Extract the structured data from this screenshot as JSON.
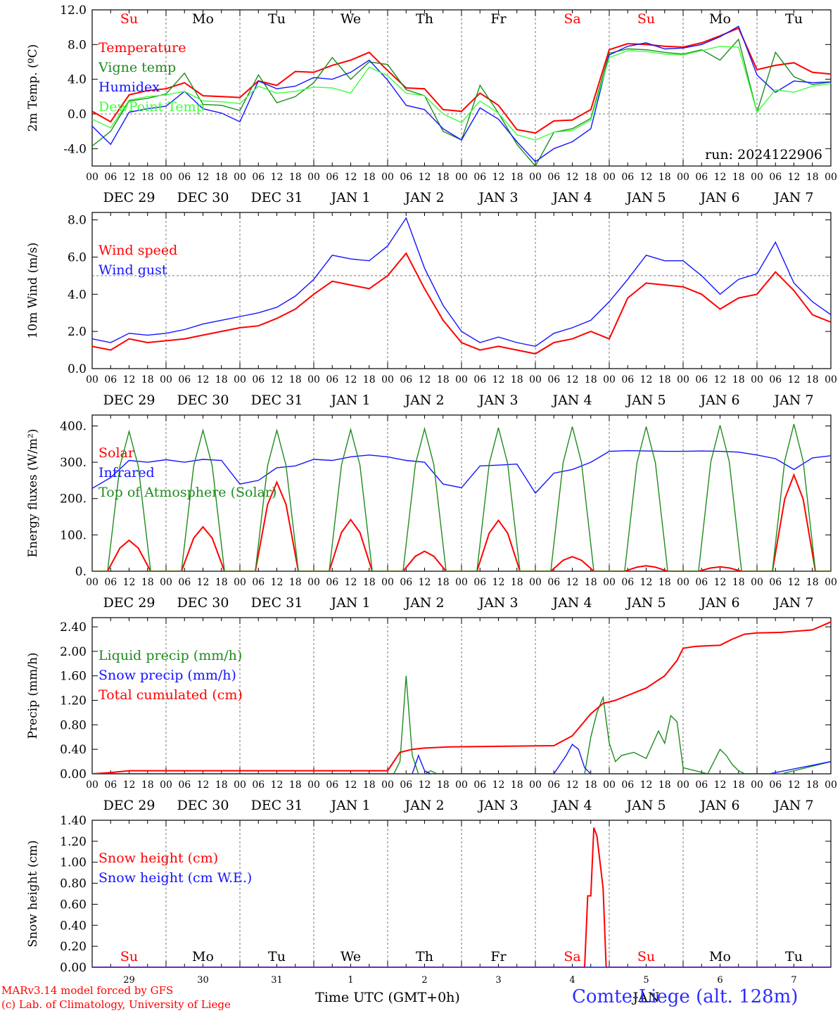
{
  "credits": {
    "line1": "MARv3.14 model forced by GFS",
    "line2": "(c) Lab. of Climatology, University of Liege"
  },
  "station_label": "Comte-Liege (alt. 128m)",
  "colors": {
    "red": "#ff0000",
    "green": "#1e8c1e",
    "blue": "#1414ff",
    "lightgreen": "#3cff3c",
    "grid": "#777777"
  },
  "chart_data": [
    {
      "type": "line",
      "ylabel": "2m Temp. (ºC)",
      "ylim": [
        -6.0,
        12.0
      ],
      "yticks": [
        "-4.0",
        "0.0",
        "4.0",
        "8.0",
        "12.0"
      ],
      "ref_line": 0,
      "run_label": "run: 2024122906",
      "weekday_row": "top",
      "weekdays": [
        {
          "label": "Su",
          "color": "#ff0000"
        },
        {
          "label": "Mo",
          "color": "#000000"
        },
        {
          "label": "Tu",
          "color": "#000000"
        },
        {
          "label": "We",
          "color": "#000000"
        },
        {
          "label": "Th",
          "color": "#000000"
        },
        {
          "label": "Fr",
          "color": "#000000"
        },
        {
          "label": "Sa",
          "color": "#ff0000"
        },
        {
          "label": "Su",
          "color": "#ff0000"
        },
        {
          "label": "Mo",
          "color": "#000000"
        },
        {
          "label": "Tu",
          "color": "#000000"
        }
      ],
      "x_ticks": [
        "00",
        "06",
        "12",
        "18"
      ],
      "dates": [
        "DEC 29",
        "DEC 30",
        "DEC 31",
        "JAN  1",
        "JAN  2",
        "JAN  3",
        "JAN  4",
        "JAN  5",
        "JAN  6",
        "JAN  7"
      ],
      "x": [
        0,
        6,
        12,
        18,
        24,
        30,
        36,
        42,
        48,
        54,
        60,
        66,
        72,
        78,
        84,
        90,
        96,
        102,
        108,
        114,
        120,
        126,
        132,
        138,
        144,
        150,
        156,
        162,
        168,
        174,
        180,
        186,
        192,
        198,
        204,
        210,
        216,
        222,
        228,
        234,
        240
      ],
      "series": [
        {
          "name": "Temperature",
          "color": "#ff0000",
          "values": [
            0.3,
            -0.9,
            2.2,
            2.7,
            2.9,
            3.6,
            2.1,
            2.0,
            1.9,
            3.8,
            3.3,
            4.9,
            4.8,
            5.6,
            6.2,
            7.1,
            5.0,
            3.0,
            2.9,
            0.5,
            0.3,
            2.4,
            1.0,
            -1.8,
            -2.2,
            -0.8,
            -0.7,
            0.5,
            7.4,
            8.1,
            8.0,
            7.8,
            7.7,
            8.2,
            9.0,
            9.9,
            5.1,
            5.6,
            5.9,
            4.8,
            4.6
          ]
        },
        {
          "name": "Vigne temp",
          "color": "#1e8c1e",
          "values": [
            -3.7,
            -2.0,
            1.5,
            1.8,
            2.3,
            4.7,
            1.1,
            1.0,
            0.4,
            4.5,
            1.3,
            2.0,
            3.6,
            6.5,
            4.0,
            6.0,
            5.7,
            2.8,
            2.1,
            -2.0,
            -3.0,
            3.3,
            0.1,
            -3.5,
            -6.0,
            -2.1,
            -1.7,
            -0.5,
            7.0,
            7.5,
            7.4,
            7.1,
            6.9,
            7.4,
            6.2,
            8.6,
            0.2,
            7.1,
            4.3,
            3.4,
            3.7
          ]
        },
        {
          "name": "Humidex",
          "color": "#1414ff",
          "values": [
            -1.4,
            -3.5,
            0.2,
            0.6,
            0.9,
            2.6,
            0.6,
            0.1,
            -0.9,
            3.8,
            2.9,
            3.2,
            4.2,
            4.0,
            4.8,
            6.2,
            3.9,
            1.0,
            0.5,
            -1.7,
            -3.0,
            0.7,
            -0.6,
            -3.2,
            -5.5,
            -4.0,
            -3.2,
            -1.7,
            6.8,
            7.8,
            8.2,
            7.5,
            7.6,
            8.0,
            8.9,
            10.1,
            4.5,
            2.5,
            3.8,
            3.6,
            3.7
          ]
        },
        {
          "name": "DewPoint Temp",
          "color": "#3cff3c",
          "values": [
            -0.6,
            -1.6,
            1.6,
            2.0,
            2.2,
            2.6,
            1.5,
            1.4,
            1.2,
            3.2,
            2.4,
            2.6,
            3.1,
            3.0,
            2.4,
            5.4,
            4.4,
            2.4,
            2.1,
            0.0,
            -1.0,
            1.5,
            0.1,
            -2.4,
            -3.0,
            -2.1,
            -1.9,
            -0.7,
            6.5,
            7.3,
            7.2,
            6.9,
            6.8,
            7.3,
            7.8,
            7.7,
            0.2,
            2.8,
            2.5,
            3.2,
            3.5
          ]
        }
      ]
    },
    {
      "type": "line",
      "ylabel": "10m Wind (m/s)",
      "ylim": [
        0.0,
        8.4
      ],
      "yticks": [
        "0.0",
        "2.0",
        "4.0",
        "6.0",
        "8.0"
      ],
      "ref_line": 5,
      "x_ticks": [
        "00",
        "06",
        "12",
        "18"
      ],
      "dates": [
        "DEC 29",
        "DEC 30",
        "DEC 31",
        "JAN  1",
        "JAN  2",
        "JAN  3",
        "JAN  4",
        "JAN  5",
        "JAN  6",
        "JAN  7"
      ],
      "x": [
        0,
        6,
        12,
        18,
        24,
        30,
        36,
        42,
        48,
        54,
        60,
        66,
        72,
        78,
        84,
        90,
        96,
        102,
        108,
        114,
        120,
        126,
        132,
        138,
        144,
        150,
        156,
        162,
        168,
        174,
        180,
        186,
        192,
        198,
        204,
        210,
        216,
        222,
        228,
        234,
        240
      ],
      "series": [
        {
          "name": "Wind speed",
          "color": "#ff0000",
          "values": [
            1.2,
            1.0,
            1.6,
            1.4,
            1.5,
            1.6,
            1.8,
            2.0,
            2.2,
            2.3,
            2.7,
            3.2,
            4.0,
            4.7,
            4.5,
            4.3,
            5.0,
            6.2,
            4.3,
            2.6,
            1.4,
            1.0,
            1.2,
            1.0,
            0.8,
            1.4,
            1.6,
            2.0,
            1.6,
            3.8,
            4.6,
            4.5,
            4.4,
            4.0,
            3.2,
            3.8,
            4.0,
            5.2,
            4.2,
            2.9,
            2.5
          ]
        },
        {
          "name": "Wind gust",
          "color": "#1414ff",
          "values": [
            1.6,
            1.4,
            1.9,
            1.8,
            1.9,
            2.1,
            2.4,
            2.6,
            2.8,
            3.0,
            3.3,
            3.9,
            4.8,
            6.1,
            5.9,
            5.8,
            6.6,
            8.1,
            5.4,
            3.4,
            2.0,
            1.4,
            1.7,
            1.4,
            1.2,
            1.9,
            2.2,
            2.6,
            3.6,
            4.8,
            6.1,
            5.8,
            5.8,
            5.0,
            4.0,
            4.8,
            5.1,
            6.8,
            4.6,
            3.6,
            2.9
          ]
        }
      ]
    },
    {
      "type": "line",
      "ylabel": "Energy fluxes (W/m²)",
      "ylim": [
        0,
        430
      ],
      "yticks": [
        "0.",
        "100.",
        "200.",
        "300.",
        "400."
      ],
      "x_ticks": [
        "00",
        "06",
        "12",
        "18"
      ],
      "dates": [
        "DEC 29",
        "DEC 30",
        "DEC 31",
        "JAN  1",
        "JAN  2",
        "JAN  3",
        "JAN  4",
        "JAN  5",
        "JAN  6",
        "JAN  7"
      ],
      "series": [
        {
          "name": "Solar",
          "color": "#ff0000",
          "day_peaks": [
            85,
            122,
            245,
            142,
            55,
            140,
            40,
            15,
            12,
            265
          ]
        },
        {
          "name": "Infrared",
          "color": "#1414ff",
          "x": [
            0,
            6,
            12,
            18,
            24,
            30,
            36,
            42,
            48,
            54,
            60,
            66,
            72,
            78,
            84,
            90,
            96,
            102,
            108,
            114,
            120,
            126,
            132,
            138,
            144,
            150,
            156,
            162,
            168,
            174,
            180,
            186,
            192,
            198,
            204,
            210,
            216,
            222,
            228,
            234,
            240
          ],
          "values": [
            228,
            258,
            305,
            300,
            307,
            300,
            308,
            305,
            240,
            250,
            285,
            290,
            308,
            305,
            315,
            320,
            315,
            305,
            300,
            240,
            230,
            290,
            292,
            295,
            215,
            270,
            280,
            300,
            330,
            332,
            331,
            330,
            330,
            331,
            330,
            328,
            320,
            310,
            280,
            312,
            318
          ]
        },
        {
          "name": "Top of Atmosphere (Solar)",
          "color": "#1e8c1e",
          "day_peaks": [
            385,
            388,
            388,
            390,
            392,
            395,
            398,
            398,
            402,
            405
          ]
        }
      ]
    },
    {
      "type": "line",
      "ylabel": "Precip (mm/h)",
      "ylim": [
        0.0,
        2.55
      ],
      "yticks": [
        "0.00",
        "0.40",
        "0.80",
        "1.20",
        "1.60",
        "2.00",
        "2.40"
      ],
      "x_ticks": [
        "00",
        "06",
        "12",
        "18"
      ],
      "dates": [
        "DEC 29",
        "DEC 30",
        "DEC 31",
        "JAN  1",
        "JAN  2",
        "JAN  3",
        "JAN  4",
        "JAN  5",
        "JAN  6",
        "JAN  7"
      ],
      "series": [
        {
          "name": "Liquid precip (mm/h)",
          "color": "#1e8c1e",
          "x": [
            0,
            96,
            98,
            100,
            102,
            104,
            106,
            108,
            110,
            112,
            114,
            116,
            120,
            150,
            160,
            162,
            164,
            166,
            168,
            170,
            172,
            176,
            180,
            184,
            186,
            188,
            190,
            192,
            200,
            204,
            206,
            208,
            210,
            212,
            216,
            224,
            240
          ],
          "values": [
            0,
            0,
            0,
            0.2,
            1.6,
            0.3,
            0,
            0,
            0.05,
            0,
            0,
            0,
            0,
            0,
            0,
            0.6,
            1.0,
            1.25,
            0.5,
            0.2,
            0.3,
            0.35,
            0.25,
            0.7,
            0.5,
            0.95,
            0.85,
            0.1,
            0,
            0.4,
            0.3,
            0.15,
            0.05,
            0,
            0,
            0,
            0.2
          ]
        },
        {
          "name": "Snow precip (mm/h)",
          "color": "#1414ff",
          "x": [
            0,
            100,
            104,
            106,
            108,
            110,
            150,
            154,
            156,
            158,
            160,
            162,
            164,
            200,
            220,
            240
          ],
          "values": [
            0,
            0,
            0,
            0.3,
            0.05,
            0,
            0,
            0.3,
            0.48,
            0.4,
            0.1,
            0,
            0,
            0,
            0,
            0.2
          ]
        },
        {
          "name": "Total cumulated (cm)",
          "color": "#ff0000",
          "x": [
            0,
            6,
            12,
            96,
            100,
            104,
            108,
            116,
            150,
            156,
            162,
            166,
            170,
            180,
            186,
            190,
            192,
            196,
            204,
            208,
            212,
            216,
            224,
            234,
            240
          ],
          "values": [
            0,
            0.02,
            0.05,
            0.05,
            0.35,
            0.4,
            0.42,
            0.44,
            0.46,
            0.62,
            0.98,
            1.15,
            1.2,
            1.4,
            1.6,
            1.85,
            2.05,
            2.08,
            2.1,
            2.2,
            2.28,
            2.3,
            2.31,
            2.35,
            2.48
          ]
        }
      ]
    },
    {
      "type": "line",
      "ylabel": "Snow height (cm)",
      "ylim": [
        0.0,
        1.4
      ],
      "yticks": [
        "0.00",
        "0.20",
        "0.40",
        "0.60",
        "0.80",
        "1.00",
        "1.20",
        "1.40"
      ],
      "weekday_row": "bottom",
      "weekdays": [
        {
          "label": "Su",
          "color": "#ff0000"
        },
        {
          "label": "Mo",
          "color": "#000000"
        },
        {
          "label": "Tu",
          "color": "#000000"
        },
        {
          "label": "We",
          "color": "#000000"
        },
        {
          "label": "Th",
          "color": "#000000"
        },
        {
          "label": "Fr",
          "color": "#000000"
        },
        {
          "label": "Sa",
          "color": "#ff0000"
        },
        {
          "label": "Su",
          "color": "#ff0000"
        },
        {
          "label": "Mo",
          "color": "#000000"
        },
        {
          "label": "Tu",
          "color": "#000000"
        }
      ],
      "day_numbers": [
        "29",
        "30",
        "31",
        "1",
        "2",
        "3",
        "4",
        "5",
        "6",
        "7"
      ],
      "month_label": "JAN",
      "xlabel": "Time UTC (GMT+0h)",
      "series": [
        {
          "name": "Snow height (cm)",
          "color": "#ff0000",
          "x": [
            0,
            160,
            161,
            162,
            163,
            164,
            165,
            166,
            167,
            168,
            169,
            240
          ],
          "values": [
            0,
            0,
            0.68,
            0.68,
            1.33,
            1.25,
            1.0,
            0.75,
            0,
            0,
            0,
            0
          ]
        },
        {
          "name": "Snow height (cm W.E.)",
          "color": "#1414ff",
          "x": [
            0,
            240
          ],
          "values": [
            0,
            0
          ]
        }
      ]
    }
  ]
}
